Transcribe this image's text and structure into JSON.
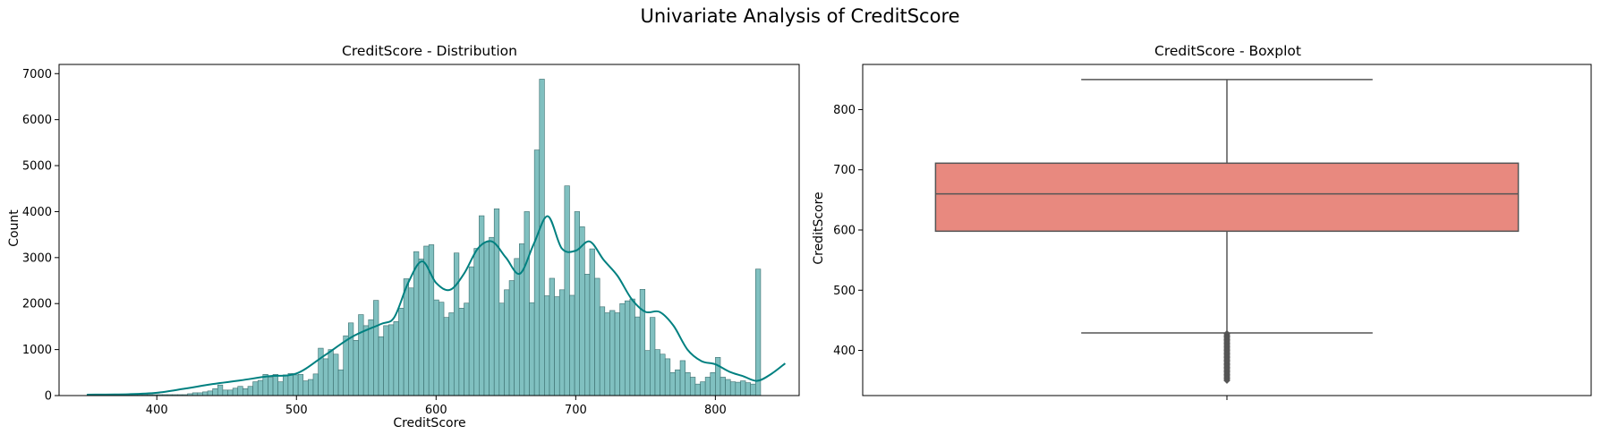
{
  "figure_title": "Univariate Analysis of CreditScore",
  "colors": {
    "hist_fill": "#80c0c0",
    "hist_edge": "#3b6e6e",
    "kde_line": "#008080",
    "box_fill": "#e8897f",
    "box_line": "#555555",
    "outlier": "#555555"
  },
  "chart_data": [
    {
      "type": "bar",
      "subtype": "histogram_with_kde",
      "title": "CreditScore - Distribution",
      "xlabel": "CreditScore",
      "ylabel": "Count",
      "xlim": [
        330,
        860
      ],
      "ylim": [
        0,
        7200
      ],
      "xticks": [
        400,
        500,
        600,
        700,
        800
      ],
      "yticks": [
        0,
        1000,
        2000,
        3000,
        4000,
        5000,
        6000,
        7000
      ],
      "bin_start": 350,
      "bin_width": 3.6,
      "counts": [
        20,
        20,
        20,
        20,
        20,
        20,
        20,
        20,
        20,
        20,
        20,
        20,
        20,
        20,
        20,
        20,
        20,
        20,
        20,
        20,
        40,
        60,
        60,
        80,
        100,
        150,
        230,
        120,
        120,
        160,
        200,
        150,
        200,
        300,
        330,
        460,
        400,
        460,
        300,
        450,
        480,
        450,
        460,
        320,
        350,
        470,
        1030,
        800,
        1000,
        900,
        560,
        1300,
        1580,
        1200,
        1760,
        1520,
        1650,
        2070,
        1280,
        1520,
        1540,
        1610,
        1900,
        2540,
        2340,
        3130,
        2970,
        3250,
        3280,
        2080,
        2030,
        1700,
        1800,
        3100,
        1900,
        2010,
        2800,
        3200,
        3910,
        3340,
        3440,
        4060,
        2010,
        2300,
        2500,
        2980,
        3300,
        4000,
        2020,
        5340,
        6880,
        2170,
        2550,
        2150,
        2300,
        4560,
        2180,
        4000,
        3670,
        2640,
        3190,
        2550,
        1930,
        1800,
        1850,
        1800,
        2000,
        2060,
        2100,
        1710,
        2310,
        980,
        1700,
        1000,
        900,
        800,
        500,
        560,
        760,
        500,
        400,
        250,
        300,
        400,
        500,
        830,
        400,
        350,
        300,
        290,
        320,
        280,
        250,
        2750
      ],
      "kde": {
        "x": [
          350,
          380,
          400,
          420,
          440,
          460,
          480,
          500,
          520,
          540,
          560,
          570,
          580,
          590,
          600,
          610,
          620,
          630,
          640,
          650,
          660,
          670,
          680,
          690,
          700,
          710,
          720,
          730,
          740,
          750,
          760,
          770,
          780,
          790,
          800,
          810,
          820,
          830,
          840,
          850
        ],
        "y": [
          20,
          30,
          60,
          150,
          250,
          330,
          420,
          480,
          870,
          1280,
          1550,
          1700,
          2450,
          2920,
          2450,
          2300,
          2650,
          3200,
          3350,
          3000,
          2650,
          3300,
          3900,
          3200,
          3150,
          3350,
          2950,
          2600,
          2100,
          1820,
          1820,
          1520,
          1000,
          750,
          680,
          520,
          420,
          320,
          470,
          700
        ]
      }
    },
    {
      "type": "box",
      "title": "CreditScore - Boxplot",
      "ylabel": "CreditScore",
      "ylim": [
        325,
        875
      ],
      "yticks": [
        400,
        500,
        600,
        700,
        800
      ],
      "whisker_low": 429,
      "q1": 598,
      "median": 660,
      "q3": 711,
      "whisker_high": 850,
      "outliers": [
        428,
        426,
        424,
        422,
        420,
        418,
        416,
        414,
        412,
        410,
        408,
        406,
        404,
        402,
        400,
        398,
        396,
        394,
        392,
        390,
        388,
        386,
        384,
        382,
        380,
        378,
        376,
        374,
        372,
        370,
        368,
        366,
        364,
        362,
        360,
        358,
        356,
        354,
        352,
        350
      ]
    }
  ]
}
